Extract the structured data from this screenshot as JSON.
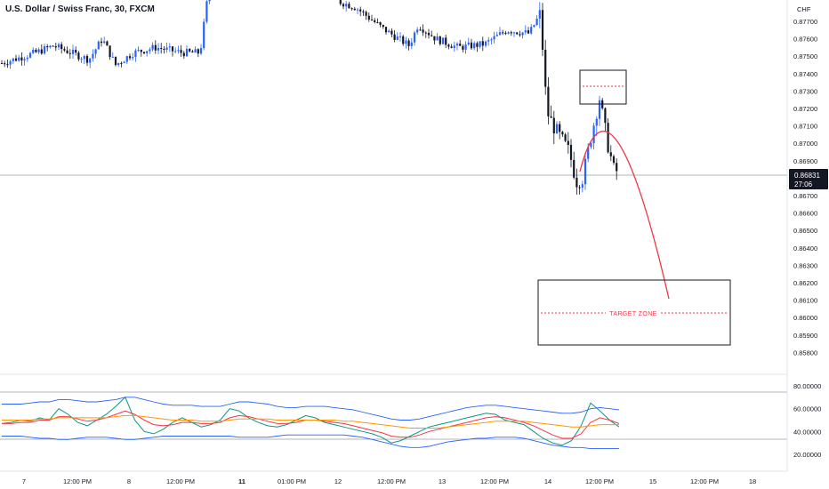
{
  "header": {
    "title": "U.S. Dollar / Swiss Franc, 30, FXCM",
    "currency": "CHF"
  },
  "price_tag": {
    "price": "0.86831",
    "countdown": "27:06"
  },
  "annotation": {
    "target_label": "TARGET ZONE",
    "color": "#f23645"
  },
  "colors": {
    "up": "#2962ff",
    "down": "#131722",
    "bands": "#2962ff",
    "rsi_green": "#089981",
    "rsi_red": "#f23645",
    "rsi_orange": "#ff9800",
    "rsi_gray": "#434651",
    "grid_line": "#b2b5be",
    "axis_text": "#131722"
  },
  "chart_data": [
    {
      "type": "candlestick",
      "title": "U.S. Dollar / Swiss Franc, 30, FXCM",
      "y_axis": {
        "unit": "CHF",
        "range": [
          0.8569,
          0.8783
        ],
        "ticks": [
          "0.87700",
          "0.87600",
          "0.87500",
          "0.87400",
          "0.87300",
          "0.87200",
          "0.87100",
          "0.87000",
          "0.86900",
          "0.86700",
          "0.86600",
          "0.86500",
          "0.86400",
          "0.86300",
          "0.86200",
          "0.86100",
          "0.86000",
          "0.85900",
          "0.85800"
        ]
      },
      "x_axis": {
        "ticks": [
          "7",
          "12:00 PM",
          "8",
          "12:00 PM",
          "11",
          "01:00 PM",
          "12",
          "12:00 PM",
          "13",
          "12:00 PM",
          "14",
          "12:00 PM",
          "15",
          "12:00 PM",
          "18"
        ]
      },
      "last_price": 0.86831,
      "key_levels": [
        {
          "label": "",
          "price": 0.87275,
          "y_range": [
            0.87225,
            0.8743
          ]
        },
        {
          "label": "TARGET ZONE",
          "price": 0.86055,
          "y_range": [
            0.8587,
            0.86245
          ]
        }
      ],
      "approx_path": [
        {
          "x": "7",
          "price": 0.8746
        },
        {
          "x": "12:00 PM",
          "price": 0.8755
        },
        {
          "x": "8",
          "price": 0.8752
        },
        {
          "x": "12:00 PM",
          "price": 0.8752
        },
        {
          "x": "11",
          "price": 0.879
        },
        {
          "x": "12",
          "price": 0.878
        },
        {
          "x": "12:00 PM",
          "price": 0.8768
        },
        {
          "x": "13",
          "price": 0.8754
        },
        {
          "x": "12:00 PM",
          "price": 0.8759
        },
        {
          "x": "14",
          "price": 0.8708
        },
        {
          "x": "14",
          "price": 0.8674
        },
        {
          "x": "12:00 PM",
          "price": 0.8726
        },
        {
          "x": "12:00 PM",
          "price": 0.86831
        }
      ],
      "projection": {
        "from": 0.8685,
        "peak": 0.8733,
        "to": 0.8614
      }
    },
    {
      "type": "line",
      "title": "",
      "y_axis": {
        "range": [
          15,
          82
        ],
        "ticks": [
          "80.00000",
          "60.00000",
          "40.00000",
          "20.00000"
        ]
      },
      "levels": [
        70,
        30
      ],
      "series": [
        {
          "values": [
            47,
            48,
            50,
            49,
            52,
            50,
            60,
            55,
            48,
            45,
            50,
            55,
            62,
            70,
            50,
            40,
            38,
            42,
            48,
            52,
            48,
            44,
            46,
            50,
            60,
            58,
            52,
            48,
            45,
            44,
            46,
            50,
            54,
            52,
            48,
            46,
            44,
            42,
            40,
            38,
            35,
            30,
            32,
            36,
            40,
            44,
            46,
            48,
            50,
            52,
            54,
            56,
            55,
            50,
            48,
            46,
            40,
            34,
            30,
            28,
            32,
            45,
            65,
            58,
            50,
            44
          ]
        },
        {
          "values": [
            47,
            47,
            48,
            48,
            50,
            50,
            53,
            53,
            51,
            49,
            50,
            52,
            55,
            58,
            55,
            50,
            46,
            45,
            46,
            48,
            48,
            47,
            47,
            48,
            52,
            54,
            53,
            51,
            49,
            47,
            47,
            48,
            50,
            50,
            49,
            48,
            47,
            45,
            43,
            41,
            39,
            36,
            35,
            35,
            37,
            40,
            42,
            44,
            46,
            48,
            50,
            52,
            53,
            52,
            50,
            48,
            45,
            41,
            37,
            34,
            34,
            38,
            48,
            52,
            50,
            47
          ]
        },
        {
          "values": [
            50,
            50,
            50,
            50,
            51,
            51,
            52,
            52,
            52,
            52,
            52,
            52,
            53,
            54,
            54,
            53,
            52,
            51,
            50,
            50,
            50,
            49,
            49,
            49,
            50,
            51,
            51,
            51,
            51,
            50,
            50,
            50,
            50,
            50,
            50,
            50,
            49,
            49,
            48,
            47,
            46,
            45,
            44,
            43,
            43,
            43,
            43,
            44,
            45,
            46,
            47,
            48,
            49,
            49,
            49,
            49,
            48,
            47,
            46,
            45,
            44,
            44,
            45,
            46,
            46,
            46
          ]
        },
        {
          "values": [
            64,
            64,
            64,
            65,
            66,
            66,
            68,
            68,
            67,
            66,
            66,
            67,
            68,
            70,
            70,
            68,
            66,
            64,
            63,
            63,
            63,
            62,
            62,
            62,
            64,
            66,
            66,
            65,
            64,
            62,
            61,
            61,
            62,
            62,
            62,
            61,
            60,
            59,
            57,
            55,
            53,
            51,
            50,
            50,
            51,
            53,
            55,
            57,
            59,
            61,
            62,
            63,
            63,
            62,
            61,
            60,
            59,
            58,
            57,
            56,
            56,
            57,
            60,
            61,
            60,
            59
          ]
        },
        {
          "values": [
            36,
            36,
            36,
            35,
            34,
            34,
            33,
            33,
            34,
            35,
            35,
            35,
            34,
            33,
            33,
            34,
            35,
            36,
            36,
            36,
            36,
            36,
            36,
            36,
            36,
            35,
            35,
            35,
            35,
            36,
            37,
            37,
            37,
            37,
            37,
            37,
            37,
            36,
            35,
            33,
            31,
            29,
            27,
            26,
            26,
            27,
            29,
            31,
            32,
            33,
            34,
            34,
            35,
            35,
            35,
            34,
            32,
            30,
            28,
            27,
            26,
            26,
            25,
            25,
            25,
            25
          ]
        }
      ]
    }
  ]
}
